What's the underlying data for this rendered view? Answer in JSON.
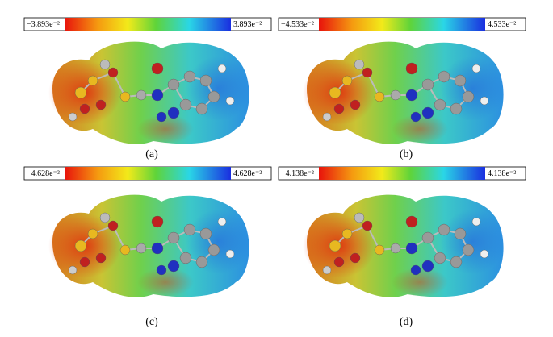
{
  "panels": [
    {
      "label": "(a)",
      "min_label": "−3.893e⁻²",
      "max_label": "3.893e⁻²"
    },
    {
      "label": "(b)",
      "min_label": "−4.533e⁻²",
      "max_label": "4.533e⁻²"
    },
    {
      "label": "(c)",
      "min_label": "−4.628e⁻²",
      "max_label": "4.628e⁻²"
    },
    {
      "label": "(d)",
      "min_label": "−4.138e⁻²",
      "max_label": "4.138e⁻²"
    }
  ]
}
